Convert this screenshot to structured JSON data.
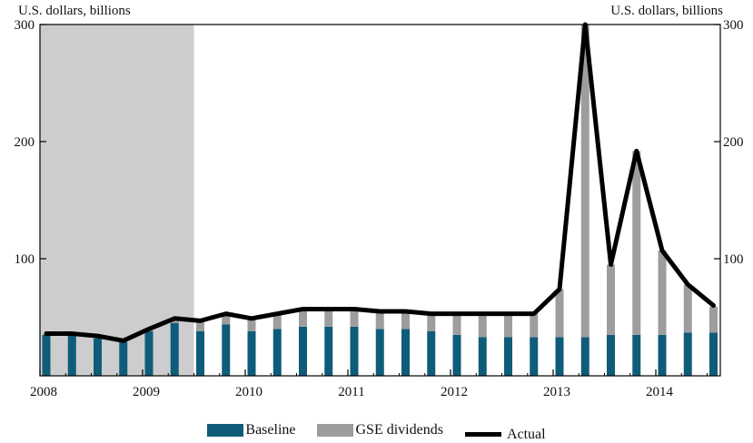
{
  "chart_data": {
    "type": "bar",
    "left_axis_label": "U.S. dollars, billions",
    "right_axis_label": "U.S. dollars, billions",
    "y_ticks": [
      "300",
      "200",
      "100"
    ],
    "x_ticks": [
      "2008",
      "2009",
      "2010",
      "2011",
      "2012",
      "2013",
      "2014"
    ],
    "ylim": [
      0,
      300
    ],
    "shaded_period": {
      "start": 2008.0,
      "end": 2009.5
    },
    "x": [
      2008.0,
      2008.25,
      2008.5,
      2008.75,
      2009.0,
      2009.25,
      2009.5,
      2009.75,
      2010.0,
      2010.25,
      2010.5,
      2010.75,
      2011.0,
      2011.25,
      2011.5,
      2011.75,
      2012.0,
      2012.25,
      2012.5,
      2012.75,
      2013.0,
      2013.25,
      2013.5,
      2013.75,
      2014.0,
      2014.25,
      2014.5
    ],
    "series": [
      {
        "name": "Baseline",
        "color": "#0e5c78",
        "values": [
          35,
          35,
          32,
          29,
          38,
          45,
          38,
          44,
          38,
          40,
          42,
          42,
          42,
          40,
          40,
          38,
          35,
          33,
          33,
          33,
          33,
          33,
          35,
          35,
          35,
          37,
          37
        ]
      },
      {
        "name": "GSE dividends",
        "color": "#9d9d9f",
        "values": [
          0,
          0,
          0,
          0,
          2,
          4,
          9,
          10,
          11,
          13,
          16,
          16,
          16,
          15,
          15,
          15,
          18,
          20,
          20,
          20,
          41,
          267,
          60,
          157,
          72,
          41,
          22
        ]
      },
      {
        "name": "Actual",
        "color": "#000000",
        "values": [
          36,
          36,
          34,
          30,
          40,
          49,
          47,
          53,
          49,
          53,
          57,
          57,
          57,
          55,
          55,
          53,
          53,
          53,
          53,
          53,
          74,
          300,
          95,
          192,
          107,
          78,
          60
        ]
      }
    ],
    "legend_position": "bottom-center",
    "grid": false
  }
}
